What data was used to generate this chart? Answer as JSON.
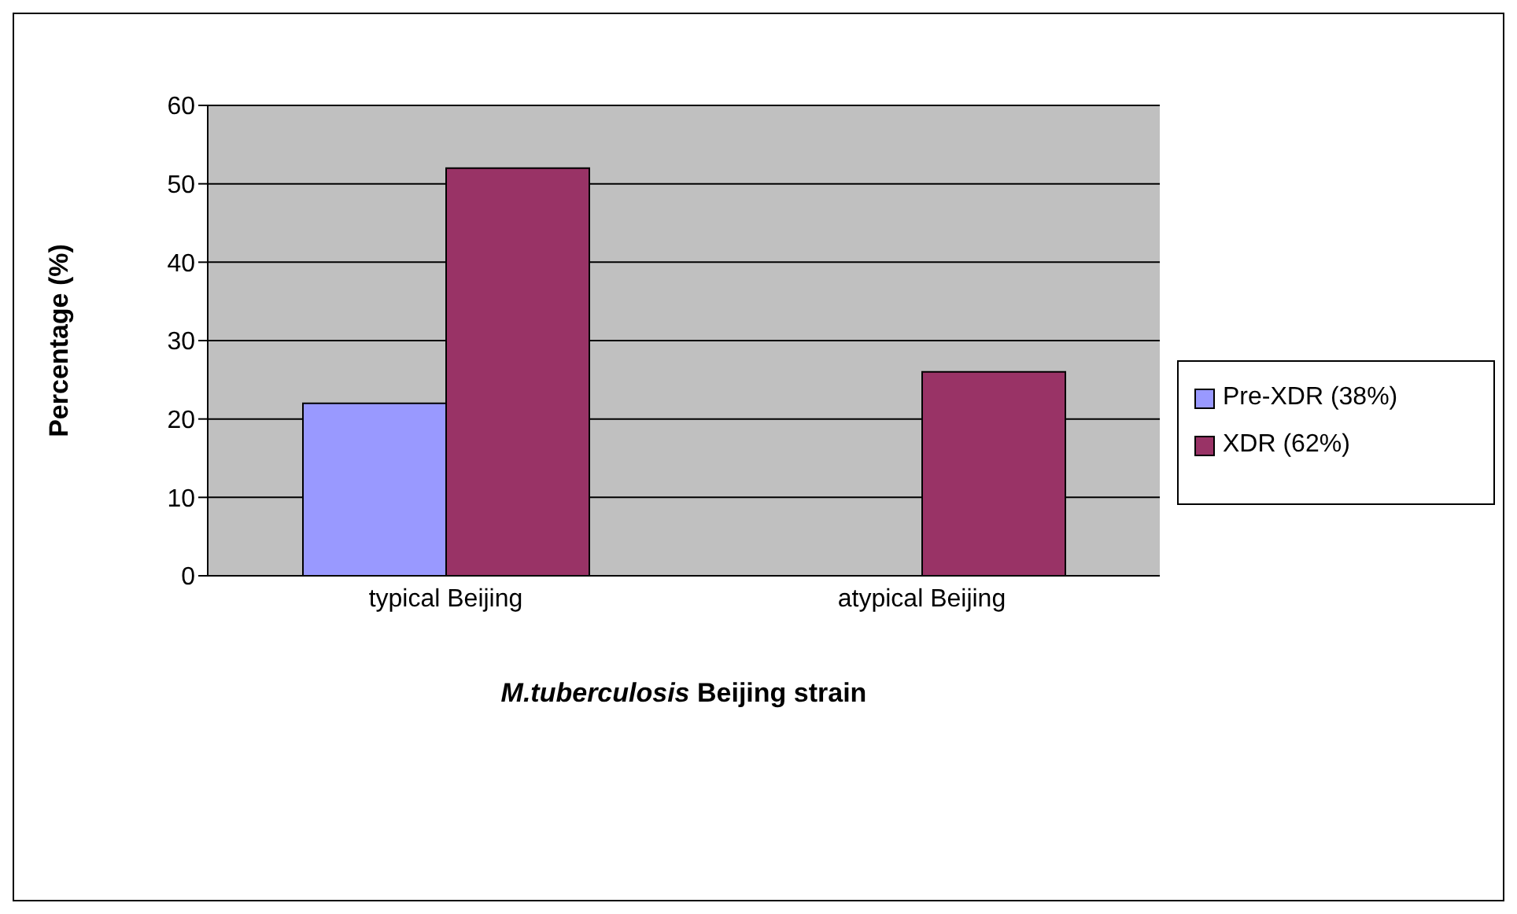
{
  "chart_data": {
    "type": "bar",
    "xlabel": "M.tuberculosis Beijing strain",
    "ylabel": "Percentage (%)",
    "categories": [
      "typical Beijing",
      "atypical Beijing"
    ],
    "series": [
      {
        "name": "Pre-XDR (38%)",
        "color": "#9999ff",
        "values": [
          22,
          0
        ]
      },
      {
        "name": "XDR (62%)",
        "color": "#993366",
        "values": [
          52,
          26
        ]
      }
    ],
    "ylim": [
      0,
      60
    ],
    "yticks": [
      0,
      10,
      20,
      30,
      40,
      50,
      60
    ],
    "grid": "y",
    "legend": "right"
  }
}
